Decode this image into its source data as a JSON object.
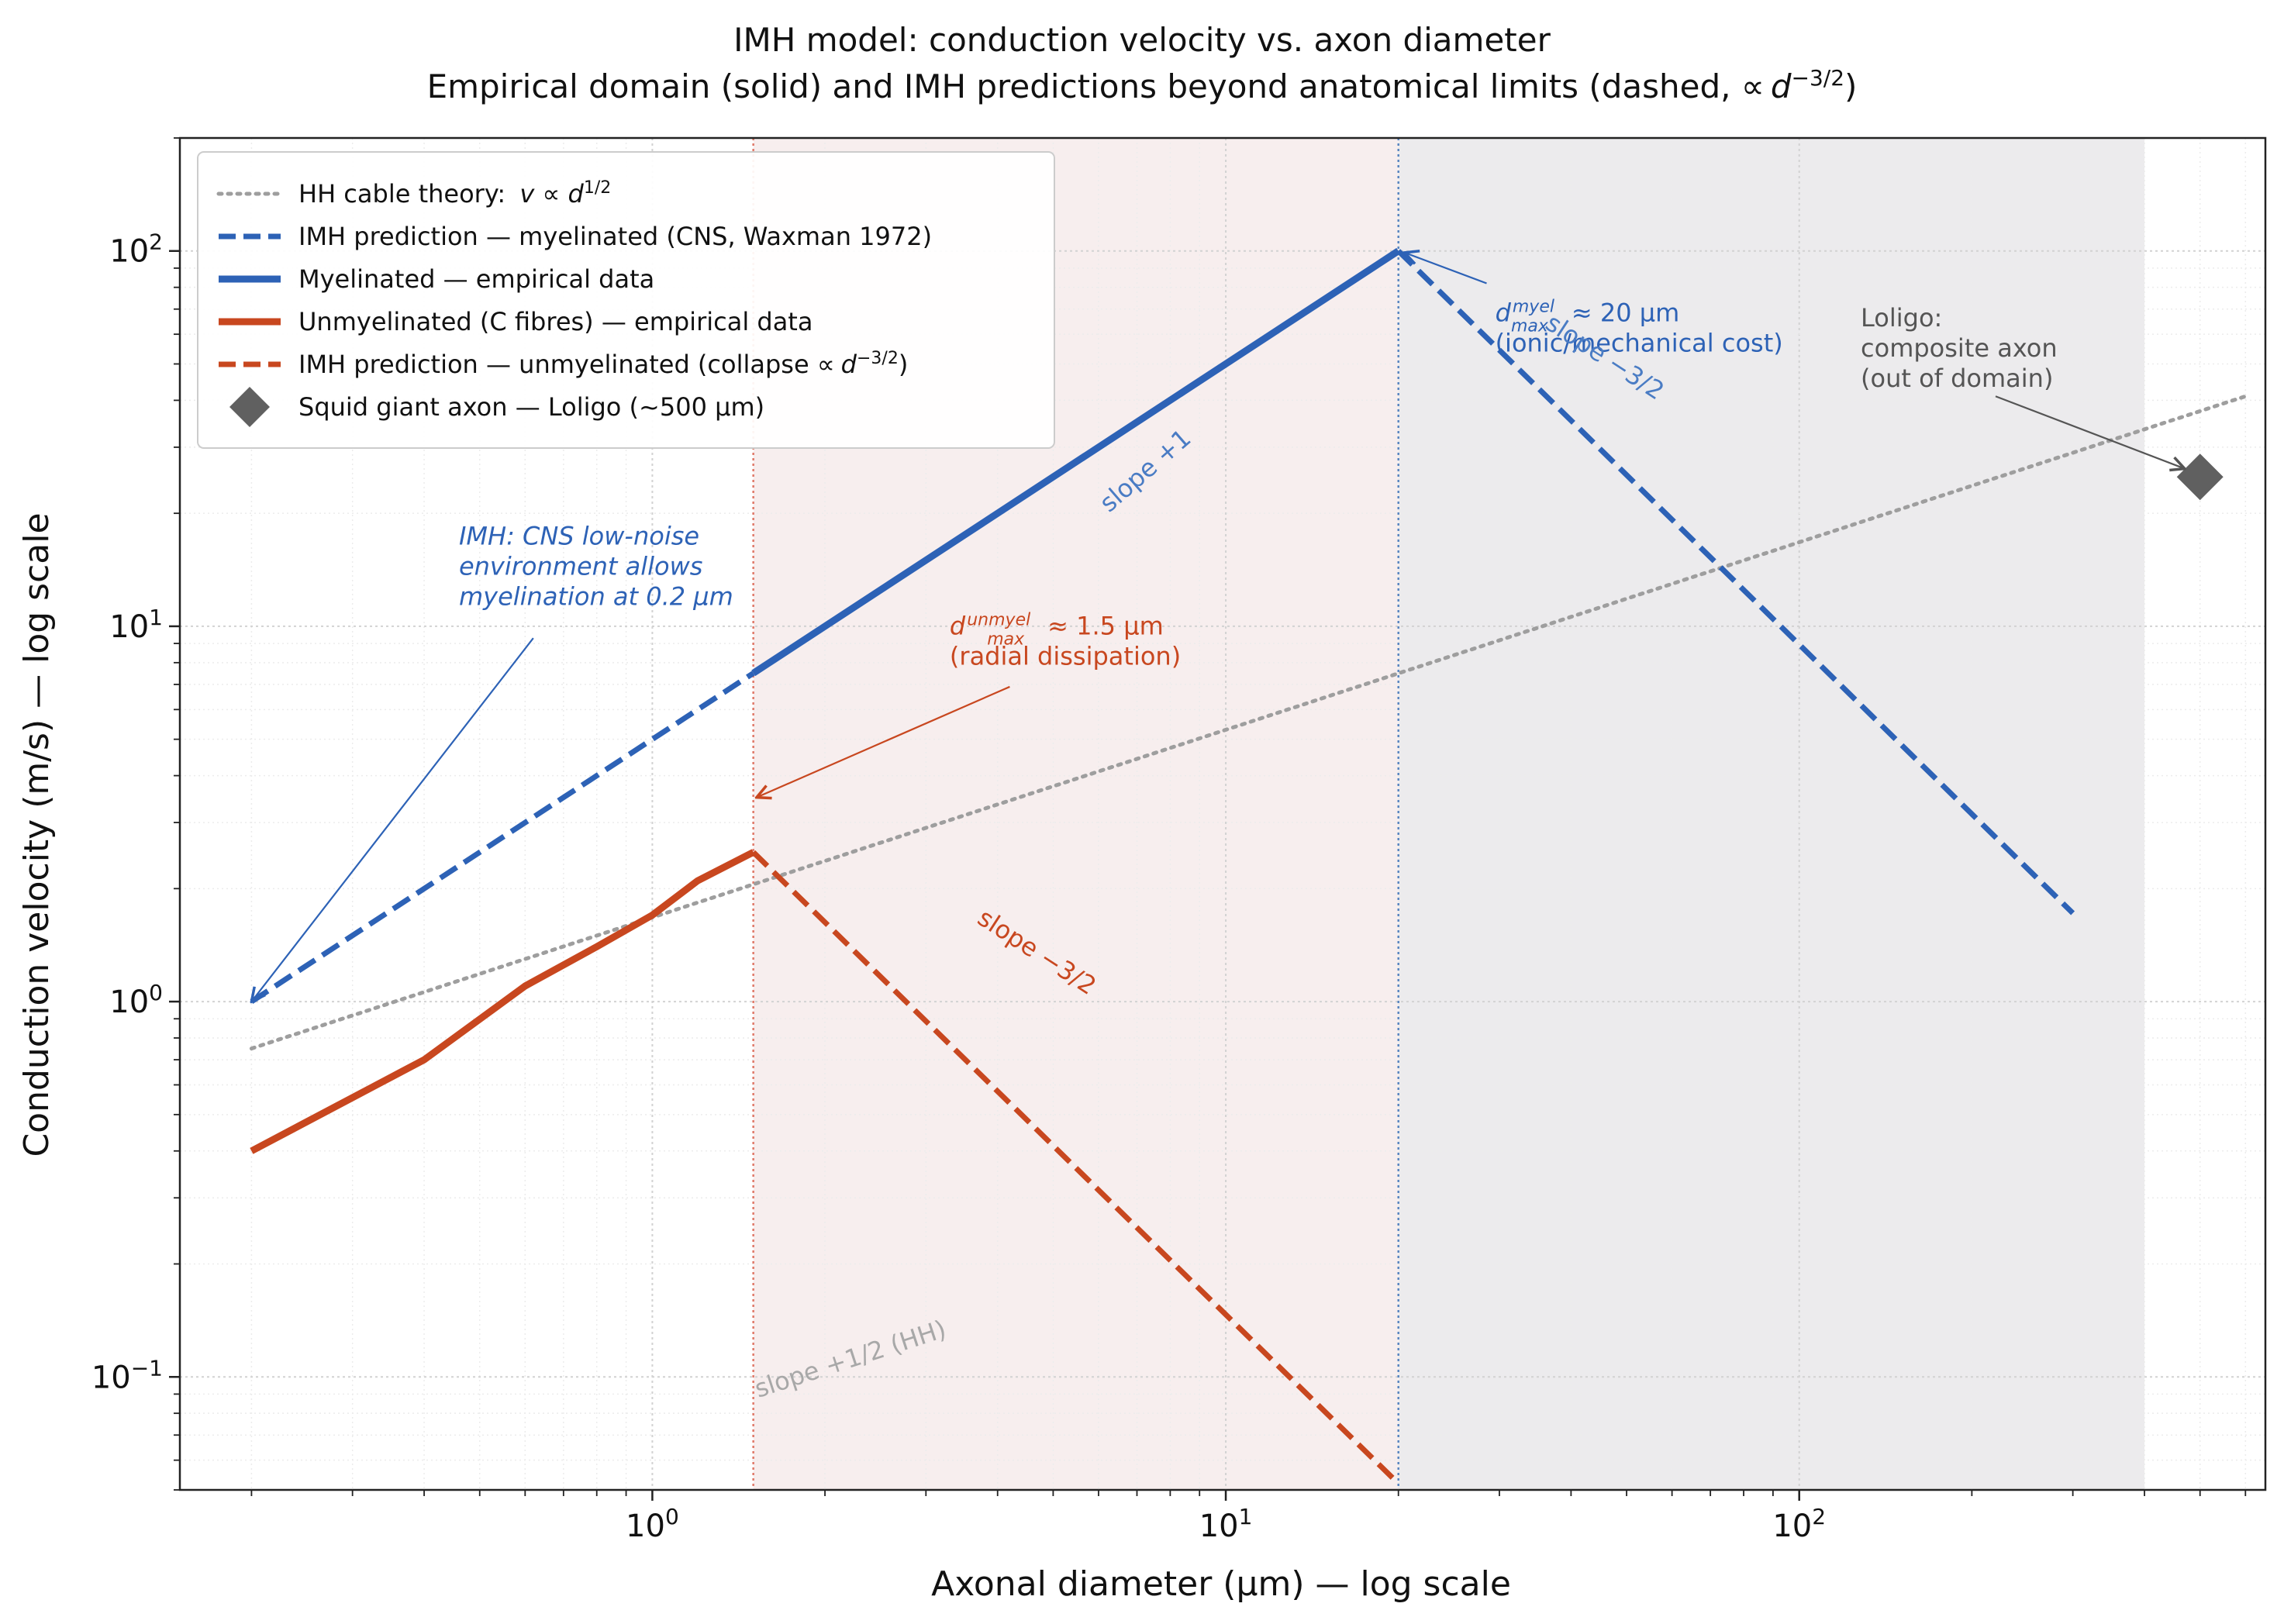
{
  "chart_data": {
    "type": "line",
    "title": "IMH model: conduction velocity vs. axon diameter",
    "subtitle": "Empirical domain (solid) and IMH predictions beyond anatomical limits (dashed, ∝d^{-3/2})",
    "subtitle_parts": {
      "main": "Empirical domain (solid) and IMH predictions beyond anatomical limits (dashed, ∝",
      "base": "d",
      "sup": "−3/2",
      "close": ")"
    },
    "xlabel": "Axonal diameter (µm) — log scale",
    "ylabel": "Conduction velocity (m/s) — log scale",
    "x_scale": "log",
    "y_scale": "log",
    "xlim": [
      0.15,
      650
    ],
    "ylim": [
      0.05,
      200
    ],
    "grid": true,
    "legend_position": "top-left",
    "x_ticks": [
      {
        "value": 1,
        "base": "10",
        "exp": "0"
      },
      {
        "value": 10,
        "base": "10",
        "exp": "1"
      },
      {
        "value": 100,
        "base": "10",
        "exp": "2"
      }
    ],
    "y_ticks": [
      {
        "value": 0.1,
        "base": "10",
        "exp": "−1"
      },
      {
        "value": 1,
        "base": "10",
        "exp": "0"
      },
      {
        "value": 10,
        "base": "10",
        "exp": "1"
      },
      {
        "value": 100,
        "base": "10",
        "exp": "2"
      }
    ],
    "regions": [
      {
        "name": "unmyelinated-out-of-domain",
        "x_from": 1.5,
        "x_to": 20,
        "color": "#f7eeee"
      },
      {
        "name": "myelinated-out-of-domain",
        "x_from": 20,
        "x_to": 400,
        "color": "#ecebed"
      }
    ],
    "vlines": [
      {
        "x": 1.5,
        "color": "#e07a6a"
      },
      {
        "x": 20,
        "color": "#5a86c0"
      }
    ],
    "series": [
      {
        "name": "HH cable theory: v ∝ d^{1/2}",
        "label_main": "HH cable theory: ",
        "label_var": "v ∝ d",
        "label_sup": "1/2",
        "style": "dotted",
        "color": "#9e9e9e",
        "width": 5,
        "x": [
          0.2,
          600
        ],
        "y": [
          0.75,
          41
        ]
      },
      {
        "name": "IMH prediction — myelinated (CNS, Waxman 1972)",
        "style": "dashed",
        "color": "#2d62b6",
        "width": 7,
        "x": [
          0.2,
          1.5
        ],
        "y": [
          1.0,
          7.5
        ]
      },
      {
        "name": "IMH prediction — myelinated (CNS, Waxman 1972)",
        "style": "dashed",
        "color": "#2d62b6",
        "width": 7,
        "in_legend": false,
        "x": [
          20,
          300
        ],
        "y": [
          100,
          1.72
        ]
      },
      {
        "name": "Myelinated — empirical data",
        "style": "solid",
        "color": "#2d62b6",
        "width": 9,
        "x": [
          1.5,
          20
        ],
        "y": [
          7.5,
          100
        ]
      },
      {
        "name": "Unmyelinated (C fibres) — empirical data",
        "style": "solid",
        "color": "#c8471f",
        "width": 9,
        "x": [
          0.2,
          0.4,
          0.6,
          0.8,
          1.0,
          1.2,
          1.5
        ],
        "y": [
          0.4,
          0.7,
          1.1,
          1.4,
          1.7,
          2.1,
          2.5
        ]
      },
      {
        "name": "IMH prediction — unmyelinated (collapse ∝ d^{-3/2})",
        "label_main": "IMH prediction — unmyelinated (collapse ∝",
        "label_var": "d",
        "label_sup": "−3/2",
        "label_close": ")",
        "style": "dashed",
        "color": "#c8471f",
        "width": 7,
        "x": [
          1.5,
          20
        ],
        "y": [
          2.5,
          0.052
        ]
      }
    ],
    "markers": [
      {
        "name": "Squid giant axon — Loligo (~500 µm)",
        "x": 500,
        "y": 25,
        "shape": "diamond",
        "color": "#606060"
      }
    ],
    "annotations": [
      {
        "id": "imh-cns",
        "lines": [
          "IMH: CNS low-noise",
          "environment allows",
          "myelination at 0.2 µm"
        ],
        "italic": true,
        "color": "#2d62b6",
        "anchor": "start",
        "x": 0.46,
        "y": 16.5,
        "arrow_from": [
          0.62,
          9.3
        ],
        "arrow_to": [
          0.2,
          1.0
        ]
      },
      {
        "id": "d-max-unmyel",
        "var": "d",
        "sup": "unmyel",
        "sub": "max",
        "value": "≈ 1.5 µm",
        "lines": [
          "(radial dissipation)"
        ],
        "color": "#c8471f",
        "anchor": "start",
        "x": 3.3,
        "y": 9.5,
        "arrow_from": [
          4.2,
          6.9
        ],
        "arrow_to": [
          1.52,
          3.5
        ]
      },
      {
        "id": "d-max-myel",
        "var": "d",
        "sup": "myel",
        "sub": "max",
        "value": "≈ 20 µm",
        "lines": [
          "(ionic/mechanical cost)"
        ],
        "color": "#2d62b6",
        "anchor": "start",
        "x": 29.5,
        "y": 65,
        "arrow_from": [
          28.5,
          82
        ],
        "arrow_to": [
          20.5,
          99
        ]
      },
      {
        "id": "loligo",
        "lines": [
          "Loligo:",
          "composite axon",
          "(out of domain)"
        ],
        "color": "#555555",
        "anchor": "start",
        "x": 128,
        "y": 63,
        "arrow_from": [
          220,
          41
        ],
        "arrow_to": [
          470,
          26.3
        ]
      },
      {
        "id": "slope-plus-1",
        "lines": [
          "slope +1"
        ],
        "color": "#4a7cc4",
        "anchor": "middle",
        "rotate": -41,
        "x": 7.4,
        "y": 25
      },
      {
        "id": "slope-myel-collapse",
        "lines": [
          "slope −3/2"
        ],
        "color": "#4a7cc4",
        "anchor": "middle",
        "rotate": 33,
        "x": 45,
        "y": 50
      },
      {
        "id": "slope-unmyel-collapse",
        "lines": [
          "slope −3/2"
        ],
        "color": "#c8471f",
        "anchor": "middle",
        "rotate": 33,
        "x": 4.6,
        "y": 1.3
      },
      {
        "id": "slope-hh",
        "lines": [
          "slope +1/2 (HH)"
        ],
        "color": "#a8a8a8",
        "anchor": "start",
        "rotate": -18,
        "x": 1.53,
        "y": 0.088
      }
    ]
  }
}
